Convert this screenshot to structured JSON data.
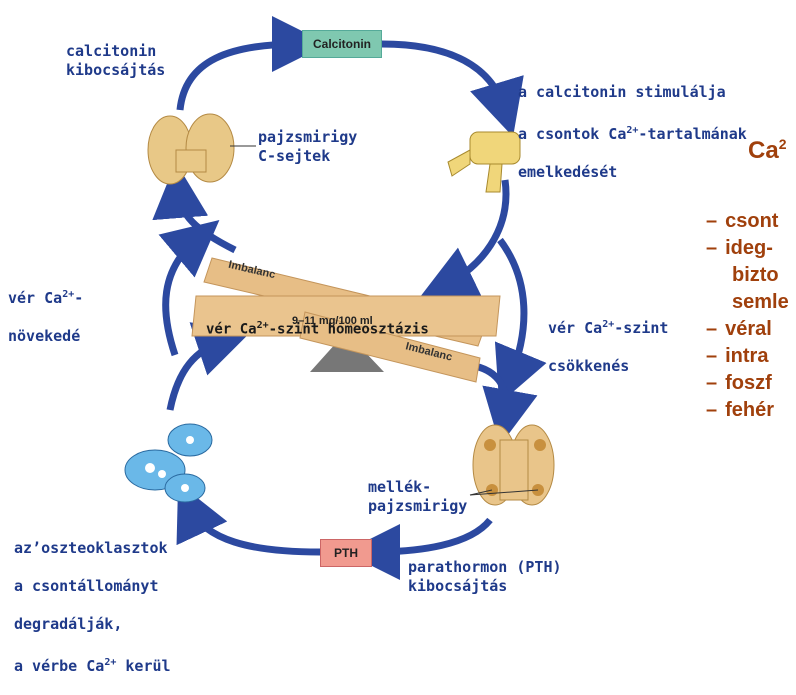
{
  "boxes": {
    "calcitonin": "Calcitonin",
    "pth": "PTH"
  },
  "labels": {
    "calcitonin_release": "calcitonin\nkibocsájtás",
    "calcitonin_stimulates_1": "a calcitonin stimulálja",
    "calcitonin_stimulates_2": "a csontok Ca",
    "calcitonin_stimulates_2_sup": "2+",
    "calcitonin_stimulates_2_end": "-tartalmának",
    "calcitonin_stimulates_3": "emelkedését",
    "thyroid": "pajzsmirigy\nC-sejtek",
    "blood_increase_1": "vér Ca",
    "blood_increase_sup": "2+",
    "blood_increase_end": "-",
    "blood_increase_2": "növekedé",
    "homeostasis_1": "vér Ca",
    "homeostasis_sup": "2+",
    "homeostasis_end": "-szint homeosztázis",
    "homeostasis_range": "9–11 mg/100 ml",
    "imbalance_left": "Imbalanc",
    "imbalance_right": "Imbalanc",
    "blood_decrease_1": "vér Ca",
    "blood_decrease_sup": "2+",
    "blood_decrease_end": "-szint",
    "blood_decrease_2": "csökkenés",
    "parathyroid": "mellék-\npajzsmirigy",
    "osteoclasts_1": "az’oszteoklasztok",
    "osteoclasts_2": "a csontállományt",
    "osteoclasts_3": "degradálják,",
    "osteoclasts_4": "a vérbe Ca",
    "osteoclasts_4_sup": "2+",
    "osteoclasts_4_end": " kerül",
    "pth_release": "parathormon (PTH)\nkibocsájtás"
  },
  "right_panel": {
    "title": "Ca",
    "title_sup": "2",
    "items": [
      "csont",
      "ideg-",
      "bizto",
      "semle",
      "véral",
      "intra",
      "foszf",
      "fehér"
    ]
  },
  "colors": {
    "arrow": "#2c49a0",
    "label": "#1f3a8a",
    "right_text": "#a0400c",
    "calcitonin_box": "#7fc8b0",
    "pth_box": "#f19a8f",
    "seesaw": "#e7be86"
  }
}
